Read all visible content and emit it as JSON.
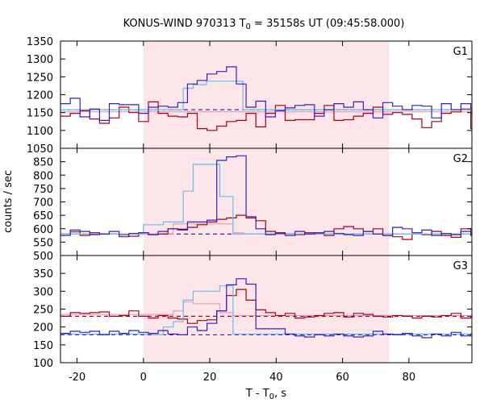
{
  "chart_data": {
    "type": "line",
    "title": "KONUS-WIND 970313 T",
    "title_sub": "0",
    "title_rest": " = 35158s UT (09:45:58.000)",
    "xlabel": "T - T",
    "xlabel_sub": "0",
    "xlabel_rest": ", s",
    "ylabel": "counts / sec",
    "xlim": [
      -25,
      99
    ],
    "x_ticks": [
      -20,
      0,
      20,
      40,
      60,
      80
    ],
    "x_tick_labels": [
      "-20",
      "0",
      "20",
      "40",
      "60",
      "80"
    ],
    "shaded_interval": [
      0,
      74
    ],
    "bin_width": 2.944,
    "x_start": -25,
    "colors": {
      "blue": "#3322bb",
      "red": "#aa0011",
      "cyan": "#66bbee",
      "pink": "#ee88bb",
      "shade": "#fde6ea"
    },
    "panels": [
      {
        "label": "G1",
        "ylim": [
          1050,
          1350
        ],
        "y_ticks": [
          1050,
          1100,
          1150,
          1200,
          1250,
          1300,
          1350
        ],
        "y_tick_labels": [
          "1050",
          "1100",
          "1150",
          "1200",
          "1250",
          "1300",
          "1350"
        ],
        "background_level": 1158,
        "series": [
          {
            "color_key": "blue",
            "values": [
              1175,
              1190,
              1138,
              1160,
              1128,
              1175,
              1172,
              1172,
              1148,
              1165,
              1168,
              1165,
              1178,
              1230,
              1240,
              1258,
              1265,
              1278,
              1230,
              1165,
              1182,
              1138,
              1155,
              1163,
              1170,
              1172,
              1140,
              1158,
              1175,
              1165,
              1180,
              1158,
              1135,
              1178,
              1168,
              1158,
              1170,
              1168,
              1135,
              1175,
              1158,
              1175,
              1160,
              1162,
              1208,
              1155,
              1160,
              1175,
              1170,
              1163,
              1160,
              1182
            ]
          },
          {
            "color_key": "red",
            "values": [
              1140,
              1148,
              1155,
              1132,
              1120,
              1135,
              1165,
              1150,
              1125,
              1180,
              1148,
              1140,
              1138,
              1148,
              1105,
              1100,
              1112,
              1125,
              1128,
              1148,
              1110,
              1148,
              1170,
              1128,
              1130,
              1130,
              1148,
              1170,
              1128,
              1130,
              1140,
              1148,
              1165,
              1145,
              1150,
              1145,
              1132,
              1108,
              1125,
              1148,
              1152,
              1160,
              1105,
              1128,
              1148,
              1138,
              1142,
              1158,
              1178,
              1140,
              1125,
              1155
            ]
          },
          {
            "color_key": "cyan",
            "steps": [
              [
                -25,
                1158
              ],
              [
                12,
                1218
              ],
              [
                15,
                1228
              ],
              [
                19,
                1238
              ],
              [
                30,
                1158
              ],
              [
                99,
                1158
              ]
            ]
          },
          {
            "color_key": "pink",
            "steps": [
              [
                -25,
                1152
              ],
              [
                99,
                1152
              ]
            ]
          }
        ]
      },
      {
        "label": "G2",
        "ylim": [
          500,
          900
        ],
        "y_ticks": [
          500,
          550,
          600,
          650,
          700,
          750,
          800,
          850
        ],
        "y_tick_labels": [
          "500",
          "550",
          "600",
          "650",
          "700",
          "750",
          "800",
          "850"
        ],
        "background_level": 580,
        "series": [
          {
            "color_key": "blue",
            "values": [
              575,
              595,
              590,
              578,
              580,
              590,
              570,
              582,
              585,
              578,
              590,
              600,
              595,
              625,
              625,
              632,
              855,
              868,
              872,
              645,
              600,
              578,
              582,
              575,
              590,
              580,
              585,
              590,
              582,
              578,
              575,
              590,
              580,
              575,
              605,
              600,
              585,
              595,
              575,
              582,
              578,
              590,
              580,
              585,
              580,
              575,
              590,
              585,
              580,
              570,
              590,
              575
            ]
          },
          {
            "color_key": "red",
            "values": [
              580,
              588,
              575,
              585,
              580,
              580,
              578,
              572,
              585,
              578,
              580,
              600,
              598,
              605,
              615,
              625,
              635,
              640,
              650,
              640,
              630,
              590,
              585,
              580,
              578,
              585,
              582,
              575,
              600,
              608,
              600,
              590,
              600,
              575,
              570,
              560,
              580,
              578,
              590,
              575,
              568,
              600,
              575,
              565,
              590,
              585,
              570,
              582,
              580,
              578,
              585,
              562
            ]
          },
          {
            "color_key": "cyan",
            "steps": [
              [
                -25,
                580
              ],
              [
                0,
                580
              ],
              [
                0,
                615
              ],
              [
                6,
                615
              ],
              [
                6,
                625
              ],
              [
                12,
                625
              ],
              [
                12,
                740
              ],
              [
                15,
                740
              ],
              [
                15,
                840
              ],
              [
                23,
                840
              ],
              [
                23,
                720
              ],
              [
                27,
                720
              ],
              [
                27,
                580
              ],
              [
                99,
                580
              ]
            ]
          },
          {
            "color_key": "pink",
            "steps": [
              [
                -25,
                580
              ],
              [
                9,
                580
              ],
              [
                9,
                618
              ],
              [
                27,
                618
              ],
              [
                27,
                585
              ],
              [
                30,
                585
              ],
              [
                30,
                580
              ],
              [
                99,
                580
              ]
            ]
          }
        ]
      },
      {
        "label": "G3",
        "ylim": [
          100,
          400
        ],
        "y_ticks": [
          100,
          150,
          200,
          250,
          300,
          350
        ],
        "y_tick_labels": [
          "100",
          "150",
          "200",
          "250",
          "300",
          "350"
        ],
        "background_blue": 178,
        "background_red": 230,
        "series": [
          {
            "color_key": "blue",
            "values": [
              182,
              188,
              185,
              188,
              178,
              188,
              182,
              190,
              185,
              182,
              190,
              180,
              178,
              200,
              190,
              210,
              245,
              318,
              335,
              320,
              195,
              195,
              195,
              180,
              175,
              172,
              178,
              175,
              180,
              175,
              172,
              175,
              188,
              180,
              178,
              182,
              175,
              170,
              180,
              175,
              185,
              175,
              180,
              182,
              175,
              180,
              175,
              178,
              182,
              178,
              180,
              178
            ]
          },
          {
            "color_key": "red",
            "values": [
              230,
              240,
              238,
              240,
              242,
              230,
              232,
              245,
              230,
              225,
              232,
              225,
              222,
              210,
              218,
              220,
              245,
              288,
              305,
              275,
              248,
              240,
              232,
              238,
              225,
              228,
              232,
              238,
              240,
              228,
              238,
              235,
              230,
              228,
              232,
              230,
              225,
              230,
              228,
              232,
              238,
              225,
              230,
              240,
              232,
              238,
              242,
              230,
              225,
              232,
              236,
              240
            ]
          },
          {
            "color_key": "cyan",
            "steps": [
              [
                -25,
                180
              ],
              [
                3,
                180
              ],
              [
                3,
                178
              ],
              [
                6,
                178
              ],
              [
                6,
                200
              ],
              [
                9,
                200
              ],
              [
                9,
                215
              ],
              [
                12,
                215
              ],
              [
                12,
                275
              ],
              [
                15,
                275
              ],
              [
                15,
                300
              ],
              [
                23,
                300
              ],
              [
                23,
                315
              ],
              [
                27,
                315
              ],
              [
                27,
                180
              ],
              [
                99,
                180
              ]
            ]
          },
          {
            "color_key": "pink",
            "steps": [
              [
                -25,
                235
              ],
              [
                9,
                235
              ],
              [
                9,
                245
              ],
              [
                12,
                245
              ],
              [
                12,
                270
              ],
              [
                15,
                270
              ],
              [
                15,
                265
              ],
              [
                23,
                265
              ],
              [
                23,
                240
              ],
              [
                27,
                240
              ],
              [
                27,
                232
              ],
              [
                99,
                232
              ]
            ]
          }
        ]
      }
    ]
  }
}
